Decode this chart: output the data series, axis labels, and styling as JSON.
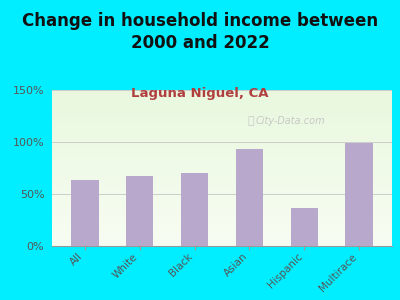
{
  "title": "Change in household income between\n2000 and 2022",
  "subtitle": "Laguna Niguel, CA",
  "categories": [
    "All",
    "White",
    "Black",
    "Asian",
    "Hispanic",
    "Multirace"
  ],
  "values": [
    63,
    67,
    70,
    93,
    37,
    99
  ],
  "bar_color": "#b8a8cc",
  "title_fontsize": 12,
  "subtitle_fontsize": 9.5,
  "subtitle_color": "#b04040",
  "tick_label_color": "#555555",
  "background_outer": "#00eeff",
  "ylim": [
    0,
    150
  ],
  "yticks": [
    0,
    50,
    100,
    150
  ],
  "ytick_labels": [
    "0%",
    "50%",
    "100%",
    "150%"
  ],
  "watermark": "City-Data.com",
  "watermark_color": "#c0c0c0",
  "grid_color": "#cccccc"
}
